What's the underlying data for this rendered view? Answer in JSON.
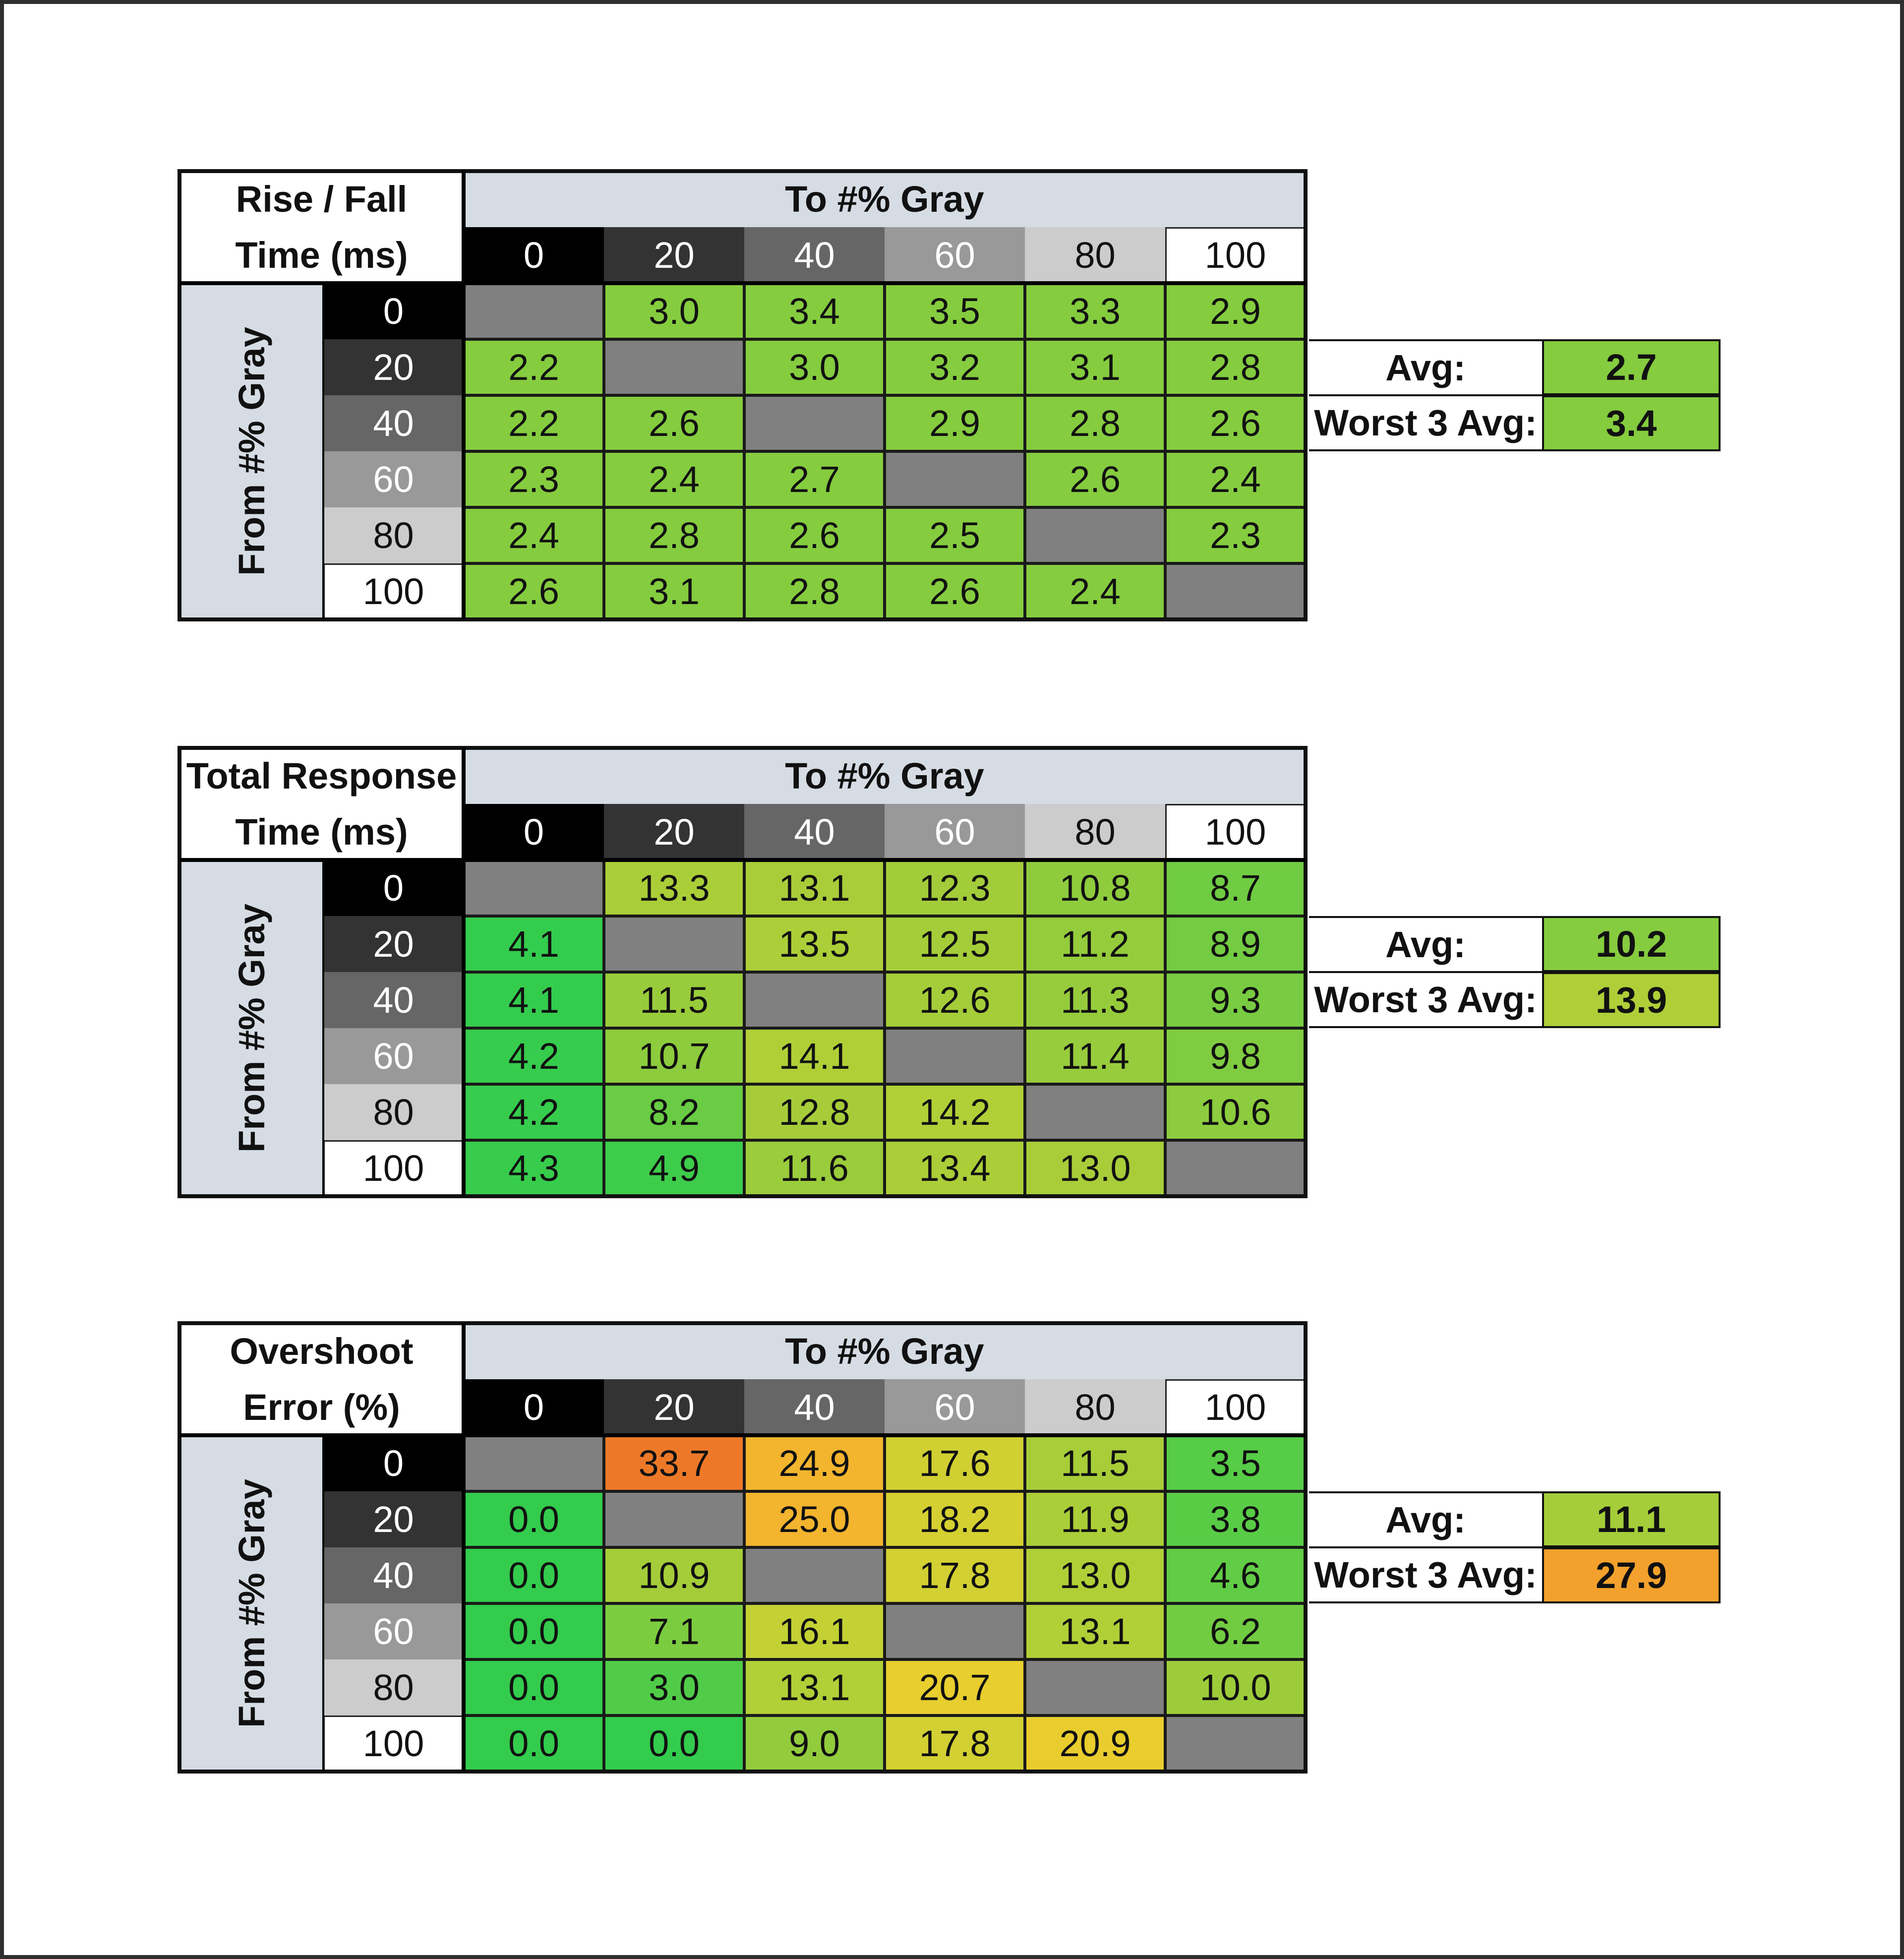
{
  "chart_data": [
    {
      "type": "table",
      "title_lines": [
        "Rise / Fall",
        "Time (ms)"
      ],
      "column_header": "To #% Gray",
      "row_header": "From #% Gray",
      "columns": [
        "0",
        "20",
        "40",
        "60",
        "80",
        "100"
      ],
      "rows": [
        "0",
        "20",
        "40",
        "60",
        "80",
        "100"
      ],
      "values": [
        [
          null,
          3.0,
          3.4,
          3.5,
          3.3,
          2.9
        ],
        [
          2.2,
          null,
          3.0,
          3.2,
          3.1,
          2.8
        ],
        [
          2.2,
          2.6,
          null,
          2.9,
          2.8,
          2.6
        ],
        [
          2.3,
          2.4,
          2.7,
          null,
          2.6,
          2.4
        ],
        [
          2.4,
          2.8,
          2.6,
          2.5,
          null,
          2.3
        ],
        [
          2.6,
          3.1,
          2.8,
          2.6,
          2.4,
          null
        ]
      ],
      "summary": [
        {
          "label": "Avg:",
          "value": 2.7
        },
        {
          "label": "Worst 3 Avg:",
          "value": 3.4
        }
      ]
    },
    {
      "type": "table",
      "title_lines": [
        "Total Response",
        "Time (ms)"
      ],
      "column_header": "To #% Gray",
      "row_header": "From #% Gray",
      "columns": [
        "0",
        "20",
        "40",
        "60",
        "80",
        "100"
      ],
      "rows": [
        "0",
        "20",
        "40",
        "60",
        "80",
        "100"
      ],
      "values": [
        [
          null,
          13.3,
          13.1,
          12.3,
          10.8,
          8.7
        ],
        [
          4.1,
          null,
          13.5,
          12.5,
          11.2,
          8.9
        ],
        [
          4.1,
          11.5,
          null,
          12.6,
          11.3,
          9.3
        ],
        [
          4.2,
          10.7,
          14.1,
          null,
          11.4,
          9.8
        ],
        [
          4.2,
          8.2,
          12.8,
          14.2,
          null,
          10.6
        ],
        [
          4.3,
          4.9,
          11.6,
          13.4,
          13.0,
          null
        ]
      ],
      "summary": [
        {
          "label": "Avg:",
          "value": 10.2
        },
        {
          "label": "Worst 3 Avg:",
          "value": 13.9
        }
      ]
    },
    {
      "type": "table",
      "title_lines": [
        "Overshoot",
        "Error (%)"
      ],
      "column_header": "To #% Gray",
      "row_header": "From #% Gray",
      "columns": [
        "0",
        "20",
        "40",
        "60",
        "80",
        "100"
      ],
      "rows": [
        "0",
        "20",
        "40",
        "60",
        "80",
        "100"
      ],
      "values": [
        [
          null,
          33.7,
          24.9,
          17.6,
          11.5,
          3.5
        ],
        [
          0.0,
          null,
          25.0,
          18.2,
          11.9,
          3.8
        ],
        [
          0.0,
          10.9,
          null,
          17.8,
          13.0,
          4.6
        ],
        [
          0.0,
          7.1,
          16.1,
          null,
          13.1,
          6.2
        ],
        [
          0.0,
          3.0,
          13.1,
          20.7,
          null,
          10.0
        ],
        [
          0.0,
          0.0,
          9.0,
          17.8,
          20.9,
          null
        ]
      ],
      "summary": [
        {
          "label": "Avg:",
          "value": 11.1
        },
        {
          "label": "Worst 3 Avg:",
          "value": 27.9
        }
      ]
    }
  ],
  "colors": {
    "diagonal": "#808080",
    "header_panel": "#d6dce4",
    "gray_levels": [
      "#000000",
      "#333333",
      "#666666",
      "#999999",
      "#cccccc",
      "#ffffff"
    ],
    "scale": [
      "#33cc4d",
      "#66cc44",
      "#a0cc3a",
      "#bfd135",
      "#e8cf2e",
      "#f5b02e",
      "#f08c2a",
      "#ea6a26"
    ]
  }
}
